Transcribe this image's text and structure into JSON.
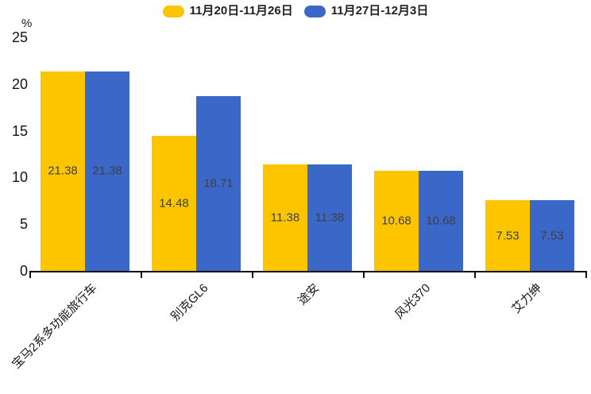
{
  "chart_data": {
    "type": "bar",
    "unit_label": "%",
    "categories": [
      "宝马2系多功能旅行车",
      "别克GL6",
      "途安",
      "风光370",
      "艾力绅"
    ],
    "series": [
      {
        "name": "11月20日-11月26日",
        "color": "#FCC500",
        "values": [
          21.38,
          14.48,
          11.38,
          10.68,
          7.53
        ]
      },
      {
        "name": "11月27日-12月3日",
        "color": "#3A67C8",
        "values": [
          21.38,
          18.71,
          11.38,
          10.68,
          7.53
        ]
      }
    ],
    "value_label_color": "#404040",
    "axis_color": "#111111",
    "ylim": [
      0,
      25
    ],
    "yticks": [
      0,
      5,
      10,
      15,
      20,
      25
    ],
    "grid": false,
    "legend_position": "top",
    "value_labels_shown": true,
    "x_label_rotation_deg": -45
  }
}
